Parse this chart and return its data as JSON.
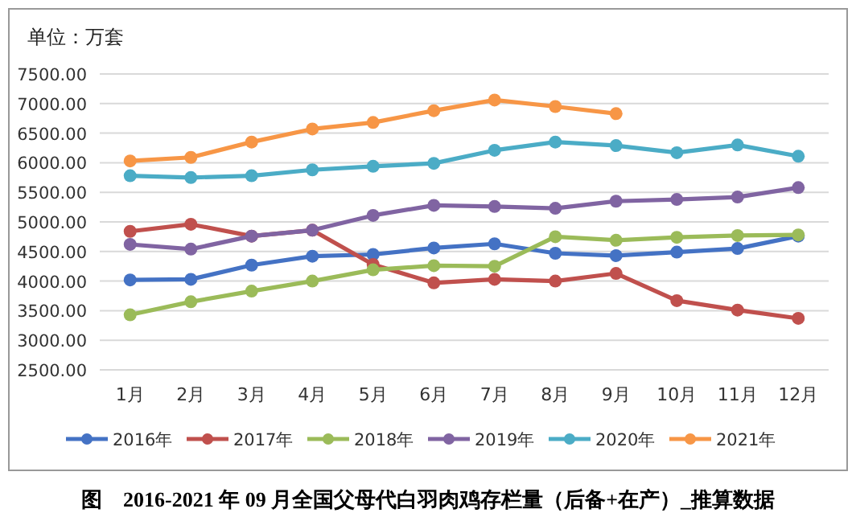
{
  "chart_data": {
    "type": "line",
    "title": "图　2016-2021 年 09 月全国父母代白羽肉鸡存栏量（后备+在产）_推算数据",
    "annotations": [
      "单位：万套"
    ],
    "categories": [
      "1月",
      "2月",
      "3月",
      "4月",
      "5月",
      "6月",
      "7月",
      "8月",
      "9月",
      "10月",
      "11月",
      "12月"
    ],
    "series": [
      {
        "name": "2016年",
        "color": "#4472c4",
        "values": [
          4020,
          4030,
          4270,
          4420,
          4450,
          4560,
          4630,
          4470,
          4430,
          4490,
          4550,
          4760
        ]
      },
      {
        "name": "2017年",
        "color": "#c0504d",
        "values": [
          4840,
          4960,
          4760,
          4860,
          4280,
          3970,
          4030,
          4000,
          4130,
          3670,
          3510,
          3370
        ]
      },
      {
        "name": "2018年",
        "color": "#9bbb59",
        "values": [
          3430,
          3650,
          3830,
          4000,
          4190,
          4260,
          4250,
          4750,
          4690,
          4740,
          4770,
          4780
        ]
      },
      {
        "name": "2019年",
        "color": "#8064a2",
        "values": [
          4620,
          4540,
          4760,
          4860,
          5110,
          5280,
          5260,
          5230,
          5350,
          5380,
          5420,
          5580
        ]
      },
      {
        "name": "2020年",
        "color": "#4bacc6",
        "values": [
          5780,
          5750,
          5780,
          5880,
          5940,
          5990,
          6210,
          6350,
          6290,
          6170,
          6300,
          6110
        ]
      },
      {
        "name": "2021年",
        "color": "#f79646",
        "values": [
          6030,
          6090,
          6350,
          6570,
          6680,
          6880,
          7060,
          6950,
          6830,
          null,
          null,
          null
        ]
      }
    ],
    "ylim": [
      2500,
      7500
    ],
    "yticks": [
      {
        "value": 2500,
        "label": "2500.00"
      },
      {
        "value": 3000,
        "label": "3000.00"
      },
      {
        "value": 3500,
        "label": "3500.00"
      },
      {
        "value": 4000,
        "label": "4000.00"
      },
      {
        "value": 4500,
        "label": "4500.00"
      },
      {
        "value": 5000,
        "label": "5000.00"
      },
      {
        "value": 5500,
        "label": "5500.00"
      },
      {
        "value": 6000,
        "label": "6000.00"
      },
      {
        "value": 6500,
        "label": "6500.00"
      },
      {
        "value": 7000,
        "label": "7000.00"
      },
      {
        "value": 7500,
        "label": "7500.00"
      }
    ],
    "grid": "y",
    "legend": "bottom",
    "marker": "circle",
    "line_style": "solid"
  }
}
